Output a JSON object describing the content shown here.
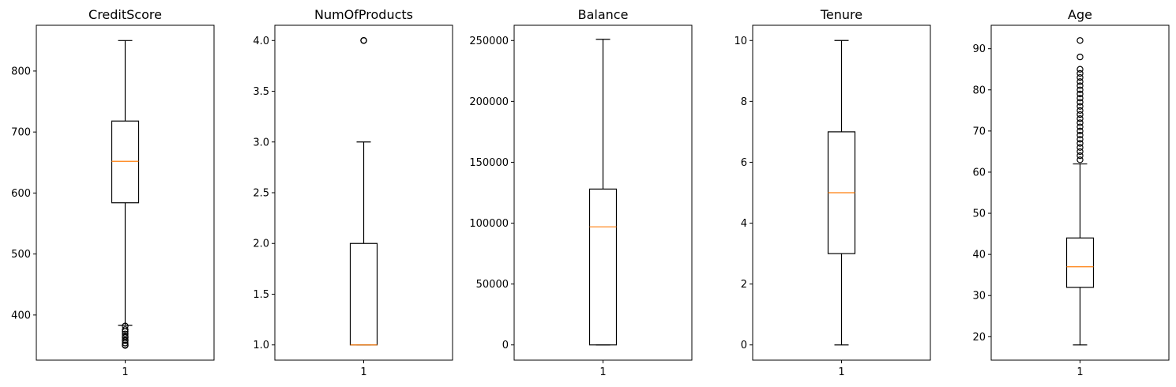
{
  "chart_data": [
    {
      "type": "box",
      "title": "CreditScore",
      "categories": [
        "1"
      ],
      "ylim": [
        326,
        875
      ],
      "yticks": [
        400,
        500,
        600,
        700,
        800
      ],
      "yticklabels": [
        "400",
        "500",
        "600",
        "700",
        "800"
      ],
      "box": {
        "whisker_low": 383,
        "q1": 584,
        "median": 652,
        "q3": 718,
        "whisker_high": 850
      },
      "outliers": [
        382,
        376,
        373,
        369,
        365,
        363,
        359,
        358,
        354,
        351,
        350
      ]
    },
    {
      "type": "box",
      "title": "NumOfProducts",
      "categories": [
        "1"
      ],
      "ylim": [
        0.85,
        4.15
      ],
      "yticks": [
        1.0,
        1.5,
        2.0,
        2.5,
        3.0,
        3.5,
        4.0
      ],
      "yticklabels": [
        "1.0",
        "1.5",
        "2.0",
        "2.5",
        "3.0",
        "3.5",
        "4.0"
      ],
      "box": {
        "whisker_low": 1,
        "q1": 1,
        "median": 1,
        "q3": 2,
        "whisker_high": 3
      },
      "outliers": [
        4,
        4,
        4
      ]
    },
    {
      "type": "box",
      "title": "Balance",
      "categories": [
        "1"
      ],
      "ylim": [
        -12500,
        262500
      ],
      "yticks": [
        0,
        50000,
        100000,
        150000,
        200000,
        250000
      ],
      "yticklabels": [
        "0",
        "50000",
        "100000",
        "150000",
        "200000",
        "250000"
      ],
      "box": {
        "whisker_low": 0,
        "q1": 0,
        "median": 97000,
        "q3": 128000,
        "whisker_high": 251000
      },
      "outliers": []
    },
    {
      "type": "box",
      "title": "Tenure",
      "categories": [
        "1"
      ],
      "ylim": [
        -0.5,
        10.5
      ],
      "yticks": [
        0,
        2,
        4,
        6,
        8,
        10
      ],
      "yticklabels": [
        "0",
        "2",
        "4",
        "6",
        "8",
        "10"
      ],
      "box": {
        "whisker_low": 0,
        "q1": 3,
        "median": 5,
        "q3": 7,
        "whisker_high": 10
      },
      "outliers": []
    },
    {
      "type": "box",
      "title": "Age",
      "categories": [
        "1"
      ],
      "ylim": [
        14.3,
        95.7
      ],
      "yticks": [
        20,
        30,
        40,
        50,
        60,
        70,
        80,
        90
      ],
      "yticklabels": [
        "20",
        "30",
        "40",
        "50",
        "60",
        "70",
        "80",
        "90"
      ],
      "box": {
        "whisker_low": 18,
        "q1": 32,
        "median": 37,
        "q3": 44,
        "whisker_high": 62
      },
      "outliers": [
        63,
        64,
        65,
        66,
        67,
        68,
        69,
        70,
        71,
        72,
        73,
        74,
        75,
        76,
        77,
        78,
        79,
        80,
        81,
        82,
        83,
        84,
        85,
        88,
        92
      ]
    }
  ],
  "colors": {
    "median": "#ff7f0e",
    "box": "#000000"
  }
}
